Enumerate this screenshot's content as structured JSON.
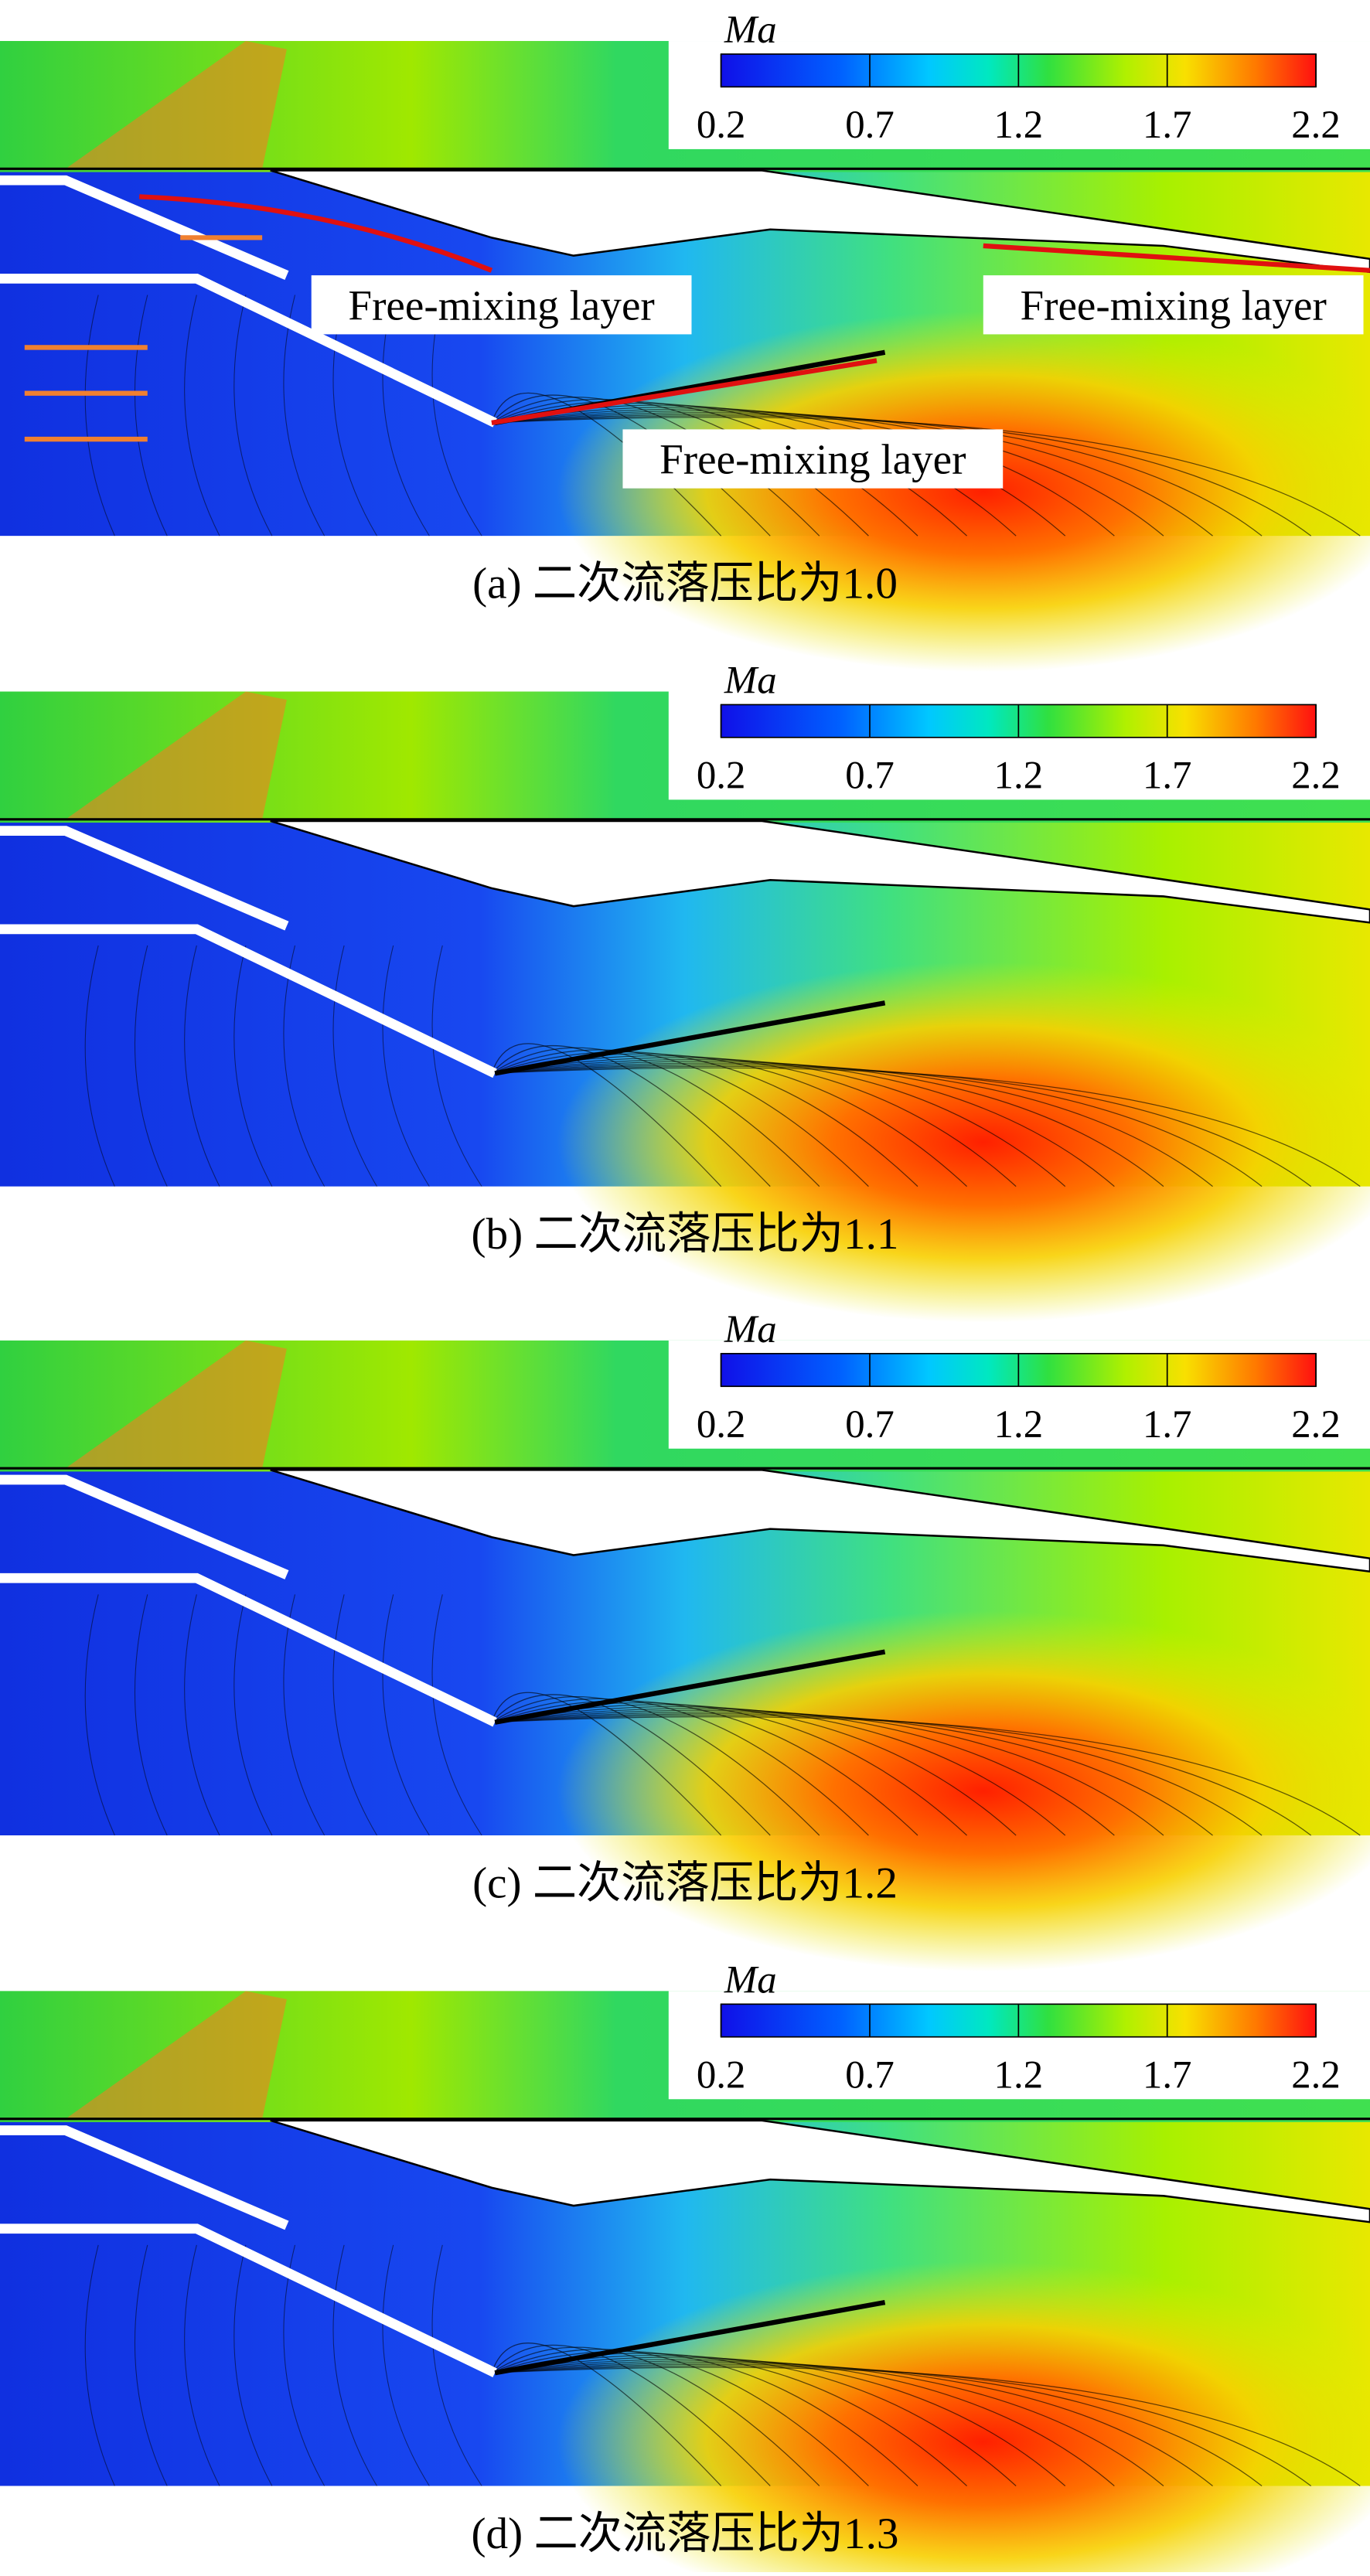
{
  "chart_data": [
    {
      "type": "contour",
      "caption": "(a) 二次流落压比为1.0",
      "colorbar": {
        "label": "Ma",
        "lim": [
          0.2,
          2.2
        ],
        "ticks": [
          0.2,
          0.7,
          1.2,
          1.7,
          2.2
        ]
      },
      "annotations": [
        "Free-mixing layer",
        "Free-mixing layer",
        "Free-mixing layer"
      ]
    },
    {
      "type": "contour",
      "caption": "(b) 二次流落压比为1.1",
      "colorbar": {
        "label": "Ma",
        "lim": [
          0.2,
          2.2
        ],
        "ticks": [
          0.2,
          0.7,
          1.2,
          1.7,
          2.2
        ]
      }
    },
    {
      "type": "contour",
      "caption": "(c) 二次流落压比为1.2",
      "colorbar": {
        "label": "Ma",
        "lim": [
          0.2,
          2.2
        ],
        "ticks": [
          0.2,
          0.7,
          1.2,
          1.7,
          2.2
        ]
      }
    },
    {
      "type": "contour",
      "caption": "(d) 二次流落压比为1.3",
      "colorbar": {
        "label": "Ma",
        "lim": [
          0.2,
          2.2
        ],
        "ticks": [
          0.2,
          0.7,
          1.2,
          1.7,
          2.2
        ]
      }
    }
  ]
}
